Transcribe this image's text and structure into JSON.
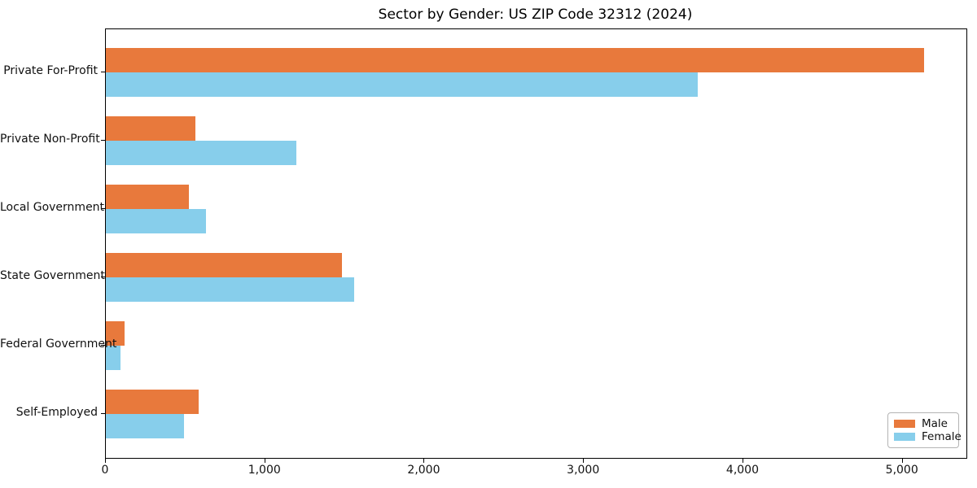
{
  "title": "Sector by Gender: US ZIP Code 32312 (2024)",
  "chart_data": {
    "type": "bar",
    "orientation": "horizontal",
    "title": "Sector by Gender: US ZIP Code 32312 (2024)",
    "xlabel": "",
    "ylabel": "",
    "categories": [
      "Private For-Profit",
      "Private Non-Profit",
      "Local Government",
      "State Government",
      "Federal Government",
      "Self-Employed"
    ],
    "series": [
      {
        "name": "Male",
        "color": "#E8793C",
        "values": [
          5135,
          560,
          520,
          1480,
          120,
          580
        ]
      },
      {
        "name": "Female",
        "color": "#87CEEB",
        "values": [
          3715,
          1195,
          630,
          1560,
          90,
          490
        ]
      }
    ],
    "xlim": [
      0,
      5400
    ],
    "xticks": [
      0,
      1000,
      2000,
      3000,
      4000,
      5000
    ],
    "xtick_labels": [
      "0",
      "1,000",
      "2,000",
      "3,000",
      "4,000",
      "5,000"
    ],
    "grid": false,
    "legend": {
      "position": "lower right"
    }
  }
}
